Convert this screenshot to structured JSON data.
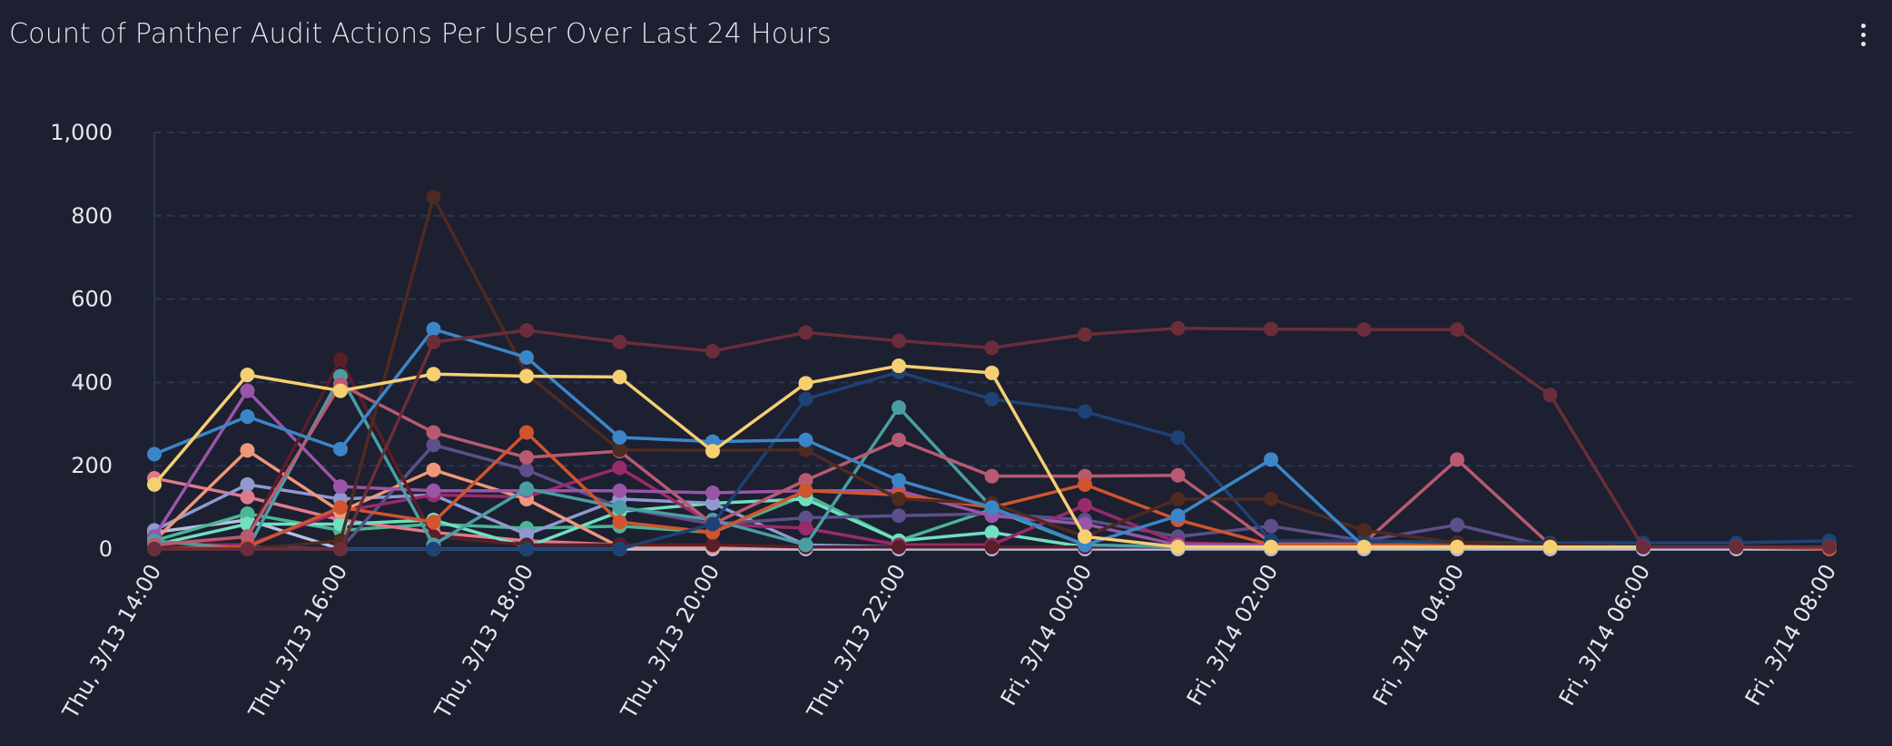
{
  "title": "Count of Panther Audit Actions Per User Over Last 24 Hours",
  "menu_icon": "kebab-menu-icon",
  "chart_data": {
    "type": "line",
    "title": "Count of Panther Audit Actions Per User Over Last 24 Hours",
    "xlabel": "",
    "ylabel": "",
    "ylim": [
      0,
      1000
    ],
    "yticks": [
      "0",
      "200",
      "400",
      "600",
      "800",
      "1,000"
    ],
    "ytick_values": [
      0,
      200,
      400,
      600,
      800,
      1000
    ],
    "grid": true,
    "legend": "none",
    "x": [
      "Thu 14:00",
      "Thu 15:00",
      "Thu 16:00",
      "Thu 17:00",
      "Thu 18:00",
      "Thu 19:00",
      "Thu 20:00",
      "Thu 21:00",
      "Thu 22:00",
      "Thu 23:00",
      "Fri 00:00",
      "Fri 01:00",
      "Fri 02:00",
      "Fri 03:00",
      "Fri 04:00",
      "Fri 05:00",
      "Fri 06:00",
      "Fri 07:00",
      "Fri 08:00"
    ],
    "xtick_labels": [
      "Thu, 3/13 14:00",
      "Thu, 3/13 16:00",
      "Thu, 3/13 18:00",
      "Thu, 3/13 20:00",
      "Thu, 3/13 22:00",
      "Fri, 3/14 00:00",
      "Fri, 3/14 02:00",
      "Fri, 3/14 04:00",
      "Fri, 3/14 06:00",
      "Fri, 3/14 08:00"
    ],
    "series": [
      {
        "color": "#b8bfe2",
        "values": [
          40,
          70,
          0,
          0,
          0,
          0,
          0,
          0,
          0,
          0,
          0,
          0,
          0,
          0,
          0,
          0,
          0,
          0,
          0
        ]
      },
      {
        "color": "#4bb594",
        "values": [
          20,
          85,
          45,
          60,
          50,
          55,
          40,
          130,
          20,
          95,
          10,
          5,
          5,
          5,
          5,
          5,
          5,
          5,
          5
        ]
      },
      {
        "color": "#e07a8a",
        "values": [
          170,
          125,
          70,
          40,
          20,
          10,
          5,
          5,
          5,
          5,
          5,
          5,
          5,
          5,
          5,
          5,
          5,
          5,
          5
        ]
      },
      {
        "color": "#6fe0c0",
        "values": [
          10,
          60,
          60,
          70,
          5,
          90,
          110,
          120,
          20,
          40,
          5,
          5,
          5,
          5,
          5,
          5,
          5,
          5,
          5
        ]
      },
      {
        "color": "#8f99d0",
        "values": [
          45,
          155,
          120,
          130,
          35,
          120,
          110,
          10,
          5,
          5,
          5,
          5,
          5,
          5,
          5,
          5,
          5,
          5,
          5
        ]
      },
      {
        "color": "#5c4f8a",
        "values": [
          10,
          5,
          0,
          250,
          190,
          100,
          60,
          75,
          80,
          85,
          70,
          30,
          55,
          20,
          58,
          5,
          5,
          5,
          5
        ]
      },
      {
        "color": "#9a2a6a",
        "values": [
          10,
          10,
          90,
          130,
          125,
          195,
          60,
          50,
          10,
          10,
          105,
          15,
          10,
          10,
          10,
          5,
          5,
          5,
          5
        ]
      },
      {
        "color": "#f0977a",
        "values": [
          20,
          237,
          90,
          190,
          120,
          5,
          5,
          5,
          5,
          5,
          5,
          5,
          5,
          5,
          5,
          5,
          5,
          5,
          5
        ]
      },
      {
        "color": "#9a55a8",
        "values": [
          30,
          380,
          150,
          140,
          140,
          140,
          135,
          140,
          140,
          80,
          60,
          10,
          10,
          10,
          10,
          5,
          5,
          5,
          5
        ]
      },
      {
        "color": "#5a1e28",
        "values": [
          0,
          30,
          455,
          30,
          10,
          10,
          10,
          5,
          5,
          5,
          5,
          5,
          5,
          5,
          5,
          5,
          5,
          5,
          5
        ]
      },
      {
        "color": "#4a9ea3",
        "values": [
          20,
          0,
          415,
          10,
          145,
          100,
          70,
          10,
          340,
          100,
          10,
          5,
          5,
          5,
          5,
          5,
          5,
          5,
          5
        ]
      },
      {
        "color": "#b85a72",
        "values": [
          10,
          30,
          395,
          280,
          220,
          235,
          60,
          165,
          262,
          175,
          175,
          177,
          15,
          15,
          215,
          10,
          5,
          5,
          5
        ]
      },
      {
        "color": "#d0552e",
        "values": [
          0,
          5,
          100,
          65,
          280,
          65,
          40,
          140,
          130,
          100,
          155,
          70,
          10,
          10,
          10,
          5,
          5,
          5,
          0
        ]
      },
      {
        "color": "#1e4273",
        "values": [
          0,
          0,
          0,
          0,
          0,
          0,
          60,
          360,
          425,
          360,
          330,
          268,
          20,
          20,
          15,
          15,
          15,
          15,
          20
        ]
      },
      {
        "color": "#4e2a20",
        "values": [
          0,
          0,
          20,
          845,
          420,
          238,
          237,
          238,
          120,
          110,
          30,
          120,
          120,
          45,
          15,
          10,
          5,
          5,
          5
        ]
      },
      {
        "color": "#3b86c8",
        "values": [
          228,
          318,
          240,
          528,
          460,
          268,
          258,
          262,
          165,
          100,
          10,
          80,
          215,
          5,
          5,
          5,
          5,
          5,
          5
        ]
      },
      {
        "color": "#f6cf72",
        "values": [
          155,
          418,
          380,
          420,
          415,
          413,
          235,
          398,
          440,
          423,
          30,
          5,
          5,
          5,
          5,
          5,
          5,
          5,
          5
        ]
      },
      {
        "color": "#6b2d3a",
        "values": [
          0,
          0,
          0,
          497,
          525,
          497,
          475,
          520,
          500,
          483,
          515,
          530,
          528,
          527,
          527,
          370,
          5,
          5,
          5
        ]
      }
    ]
  }
}
